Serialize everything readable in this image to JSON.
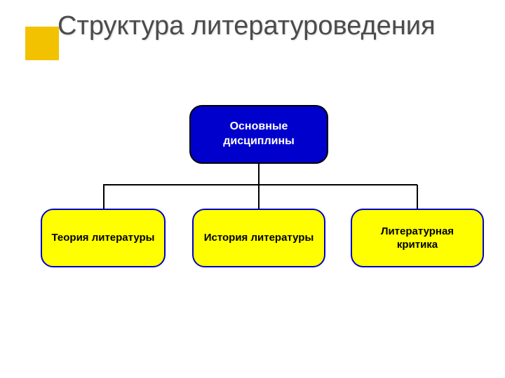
{
  "slide": {
    "title": "Структура литературоведения",
    "accent_square_color": "#f2c200",
    "title_color": "#4b4b4b",
    "title_fontsize": 38,
    "background_color": "#ffffff"
  },
  "diagram": {
    "type": "tree",
    "connector_color": "#000000",
    "parent": {
      "label": "Основные дисциплины",
      "fill": "#0000cc",
      "border": "#000000",
      "text_color": "#ffffff",
      "border_radius": 18,
      "fontsize": 16,
      "font_weight": "bold"
    },
    "children": [
      {
        "label": "Теория литературы",
        "fill": "#ffff00",
        "border": "#0000cc",
        "text_color": "#000000",
        "border_radius": 18,
        "fontsize": 15,
        "font_weight": "bold"
      },
      {
        "label": "История литературы",
        "fill": "#ffff00",
        "border": "#0000cc",
        "text_color": "#000000",
        "border_radius": 18,
        "fontsize": 15,
        "font_weight": "bold"
      },
      {
        "label": "Литературная критика",
        "fill": "#ffff00",
        "border": "#0000cc",
        "text_color": "#000000",
        "border_radius": 18,
        "fontsize": 15,
        "font_weight": "bold"
      }
    ]
  }
}
